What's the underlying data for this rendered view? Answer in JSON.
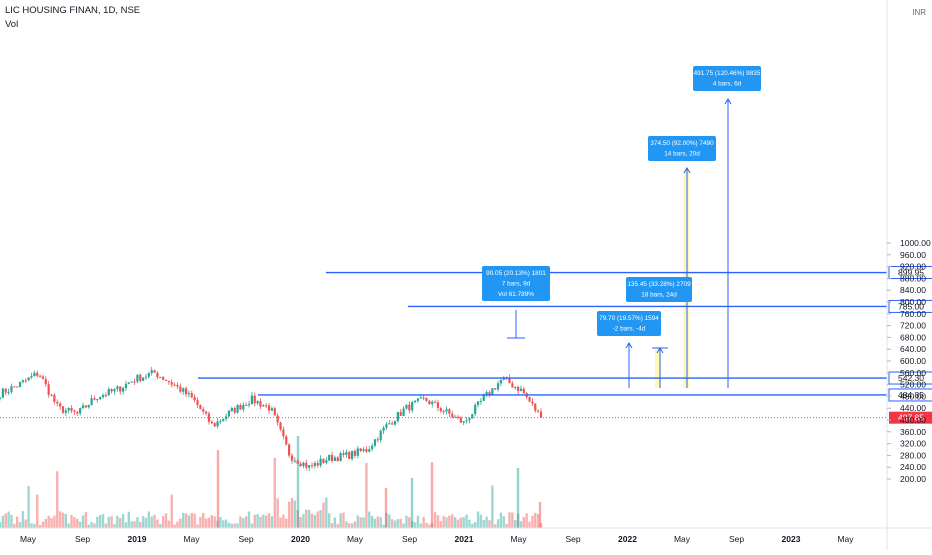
{
  "header": {
    "symbol_line": "LIC HOUSING FINAN, 1D, NSE",
    "volume_label": "Vol"
  },
  "axis": {
    "currency": "INR",
    "y_ticks": [
      "1000.00",
      "960.00",
      "920.00",
      "880.00",
      "840.00",
      "800.00",
      "760.00",
      "720.00",
      "680.00",
      "640.00",
      "600.00",
      "560.00",
      "520.00",
      "480.00",
      "440.00",
      "400.00",
      "360.00",
      "320.00",
      "280.00",
      "240.00",
      "200.00"
    ],
    "x_ticks": [
      {
        "label": "May",
        "bold": false
      },
      {
        "label": "Sep",
        "bold": false
      },
      {
        "label": "2019",
        "bold": true
      },
      {
        "label": "May",
        "bold": false
      },
      {
        "label": "Sep",
        "bold": false
      },
      {
        "label": "2020",
        "bold": true
      },
      {
        "label": "May",
        "bold": false
      },
      {
        "label": "Sep",
        "bold": false
      },
      {
        "label": "2021",
        "bold": true
      },
      {
        "label": "May",
        "bold": false
      },
      {
        "label": "Sep",
        "bold": false
      },
      {
        "label": "2022",
        "bold": true
      },
      {
        "label": "May",
        "bold": false
      },
      {
        "label": "Sep",
        "bold": false
      },
      {
        "label": "2023",
        "bold": true
      },
      {
        "label": "May",
        "bold": false
      }
    ]
  },
  "price_levels": [
    {
      "label": "899.95",
      "value": 899.95,
      "kind": "level"
    },
    {
      "label": "785.00",
      "value": 785.0,
      "kind": "level"
    },
    {
      "label": "542.30",
      "value": 542.3,
      "kind": "level"
    },
    {
      "label": "484.85",
      "value": 484.85,
      "kind": "level"
    },
    {
      "label": "407.85",
      "value": 407.85,
      "kind": "last"
    }
  ],
  "measure_labels": [
    {
      "lines": [
        "491.75 (120.46%) 9835",
        "4 bars, 6d"
      ]
    },
    {
      "lines": [
        "374.50 (92.00%) 7490",
        "14 bars, 20d"
      ]
    },
    {
      "lines": [
        "135.45 (33.28%) 2709",
        "18 bars, 24d"
      ]
    },
    {
      "lines": [
        "79.70 (19.57%) 1594",
        "-2 bars, -4d"
      ]
    },
    {
      "lines": [
        "90.05 (20.13%) 1801",
        "7 bars, 9d",
        "Vol 61.789%"
      ]
    }
  ],
  "colors": {
    "up": "#26a69a",
    "down": "#ef5350",
    "level_line": "#2962ff",
    "last_price": "#f23645",
    "label_bg": "#2196f3",
    "highlight": "#fff59d"
  },
  "chart_data": {
    "type": "candlestick",
    "interval": "1D",
    "ylim": [
      190,
      1040
    ],
    "approx_close_path": [
      {
        "date": "2018-05",
        "close": 490
      },
      {
        "date": "2018-07",
        "close": 520
      },
      {
        "date": "2018-08",
        "close": 560
      },
      {
        "date": "2018-09",
        "close": 440
      },
      {
        "date": "2018-10",
        "close": 420
      },
      {
        "date": "2019-01",
        "close": 480
      },
      {
        "date": "2019-03",
        "close": 500
      },
      {
        "date": "2019-04",
        "close": 540
      },
      {
        "date": "2019-06",
        "close": 560
      },
      {
        "date": "2019-07",
        "close": 520
      },
      {
        "date": "2019-08",
        "close": 470
      },
      {
        "date": "2019-09",
        "close": 380
      },
      {
        "date": "2019-11",
        "close": 430
      },
      {
        "date": "2020-01",
        "close": 470
      },
      {
        "date": "2020-02",
        "close": 440
      },
      {
        "date": "2020-03",
        "close": 280
      },
      {
        "date": "2020-04",
        "close": 240
      },
      {
        "date": "2020-06",
        "close": 270
      },
      {
        "date": "2020-08",
        "close": 280
      },
      {
        "date": "2020-10",
        "close": 300
      },
      {
        "date": "2020-12",
        "close": 380
      },
      {
        "date": "2021-01",
        "close": 440
      },
      {
        "date": "2021-02",
        "close": 470
      },
      {
        "date": "2021-03",
        "close": 430
      },
      {
        "date": "2021-04",
        "close": 390
      },
      {
        "date": "2021-05",
        "close": 470
      },
      {
        "date": "2021-06",
        "close": 540
      },
      {
        "date": "2021-07",
        "close": 500
      },
      {
        "date": "2021-08",
        "close": 408
      }
    ]
  }
}
